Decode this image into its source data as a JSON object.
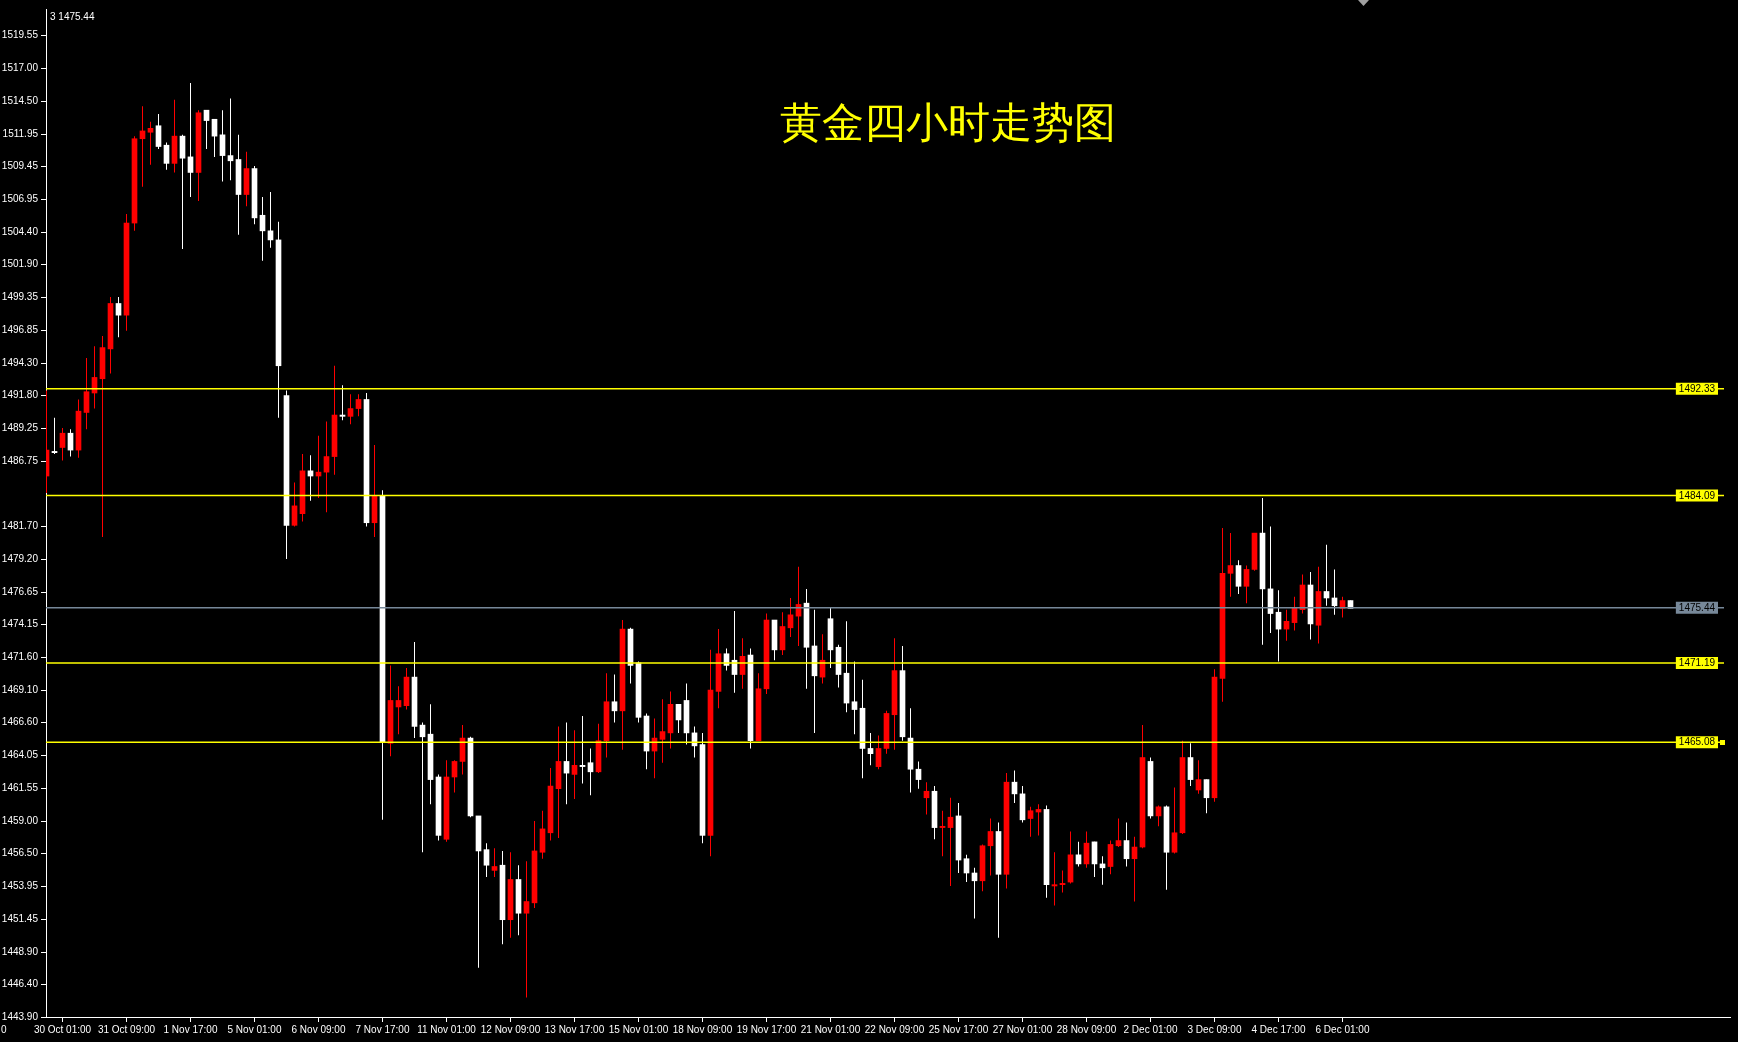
{
  "chart_data": {
    "type": "candlestick",
    "title": "黄金四小时走势图",
    "annotations": [
      "3 1475.44",
      "0"
    ],
    "categories": [
      null,
      null,
      "30 Oct 01:00",
      null,
      null,
      null,
      null,
      null,
      null,
      null,
      "31 Oct 09:00",
      null,
      null,
      null,
      null,
      null,
      null,
      null,
      "1 Nov 17:00",
      null,
      null,
      null,
      null,
      null,
      null,
      null,
      "5 Nov 01:00",
      null,
      null,
      null,
      null,
      null,
      null,
      null,
      "6 Nov 09:00",
      null,
      null,
      null,
      null,
      null,
      null,
      null,
      "7 Nov 17:00",
      null,
      null,
      null,
      null,
      null,
      null,
      null,
      "11 Nov 01:00",
      null,
      null,
      null,
      null,
      null,
      null,
      null,
      "12 Nov 09:00",
      null,
      null,
      null,
      null,
      null,
      null,
      null,
      "13 Nov 17:00",
      null,
      null,
      null,
      null,
      null,
      null,
      null,
      "15 Nov 01:00",
      null,
      null,
      null,
      null,
      null,
      null,
      null,
      "18 Nov 09:00",
      null,
      null,
      null,
      null,
      null,
      null,
      null,
      "19 Nov 17:00",
      null,
      null,
      null,
      null,
      null,
      null,
      null,
      "21 Nov 01:00",
      null,
      null,
      null,
      null,
      null,
      null,
      null,
      "22 Nov 09:00",
      null,
      null,
      null,
      null,
      null,
      null,
      null,
      "25 Nov 17:00",
      null,
      null,
      null,
      null,
      null,
      null,
      null,
      "27 Nov 01:00",
      null,
      null,
      null,
      null,
      null,
      null,
      null,
      "28 Nov 09:00",
      null,
      null,
      null,
      null,
      null,
      null,
      null,
      "2 Dec 01:00",
      null,
      null,
      null,
      null,
      null,
      null,
      null,
      "3 Dec 09:00",
      null,
      null,
      null,
      null,
      null,
      null,
      null,
      "4 Dec 17:00",
      null,
      null,
      null,
      null,
      null,
      null,
      null,
      "6 Dec 01:00",
      null
    ],
    "ohlc": [
      [
        1485.6,
        1492.2,
        1484.3,
        1487.6
      ],
      [
        1487.5,
        1490.1,
        1487.3,
        1487.4
      ],
      [
        1487.8,
        1489.3,
        1486.8,
        1488.9
      ],
      [
        1488.9,
        1489.2,
        1487.1,
        1487.6
      ],
      [
        1487.6,
        1491.5,
        1487.0,
        1490.6
      ],
      [
        1490.5,
        1494.7,
        1489.2,
        1492.1
      ],
      [
        1492.0,
        1495.6,
        1490.8,
        1493.2
      ],
      [
        1493.1,
        1496.4,
        1480.9,
        1495.5
      ],
      [
        1495.4,
        1499.4,
        1493.5,
        1498.9
      ],
      [
        1498.9,
        1499.4,
        1496.3,
        1498.0
      ],
      [
        1498.0,
        1505.8,
        1496.8,
        1505.1
      ],
      [
        1505.1,
        1511.8,
        1504.5,
        1511.6
      ],
      [
        1511.6,
        1514.1,
        1507.9,
        1512.2
      ],
      [
        1512.1,
        1512.9,
        1509.6,
        1512.4
      ],
      [
        1512.6,
        1513.5,
        1510.8,
        1511.0
      ],
      [
        1511.1,
        1511.3,
        1509.2,
        1509.7
      ],
      [
        1509.7,
        1514.6,
        1509.0,
        1511.8
      ],
      [
        1511.8,
        1511.9,
        1503.1,
        1510.1
      ],
      [
        1510.2,
        1515.9,
        1507.1,
        1509.0
      ],
      [
        1509.0,
        1513.8,
        1506.8,
        1513.6
      ],
      [
        1513.8,
        1513.8,
        1510.8,
        1513.0
      ],
      [
        1513.1,
        1513.1,
        1510.2,
        1511.8
      ],
      [
        1511.9,
        1513.8,
        1508.3,
        1510.3
      ],
      [
        1510.3,
        1514.7,
        1508.4,
        1509.9
      ],
      [
        1510.0,
        1511.9,
        1504.2,
        1507.3
      ],
      [
        1507.3,
        1510.6,
        1506.4,
        1509.3
      ],
      [
        1509.3,
        1509.5,
        1505.0,
        1505.5
      ],
      [
        1505.7,
        1507.1,
        1502.2,
        1504.5
      ],
      [
        1504.5,
        1507.5,
        1503.2,
        1503.8
      ],
      [
        1503.8,
        1505.2,
        1490.1,
        1494.1
      ],
      [
        1491.8,
        1492.2,
        1479.2,
        1481.8
      ],
      [
        1481.8,
        1485.1,
        1481.7,
        1483.3
      ],
      [
        1482.7,
        1487.3,
        1482.1,
        1486.0
      ],
      [
        1486.0,
        1487.2,
        1483.7,
        1485.6
      ],
      [
        1485.6,
        1488.7,
        1483.9,
        1485.9
      ],
      [
        1485.9,
        1489.8,
        1482.8,
        1487.1
      ],
      [
        1487.1,
        1494.1,
        1485.7,
        1490.3
      ],
      [
        1490.3,
        1492.6,
        1489.9,
        1490.2
      ],
      [
        1490.2,
        1491.9,
        1489.6,
        1490.8
      ],
      [
        1490.8,
        1491.9,
        1490.2,
        1491.5
      ],
      [
        1491.5,
        1492.0,
        1481.7,
        1482.0
      ],
      [
        1482.0,
        1488.0,
        1480.9,
        1484.1
      ],
      [
        1484.1,
        1484.5,
        1459.1,
        1465.1
      ],
      [
        1465.0,
        1471.0,
        1464.0,
        1468.3
      ],
      [
        1467.8,
        1469.4,
        1465.7,
        1468.3
      ],
      [
        1467.9,
        1470.8,
        1467.6,
        1470.1
      ],
      [
        1470.1,
        1472.8,
        1465.4,
        1466.3
      ],
      [
        1466.4,
        1466.6,
        1456.6,
        1465.5
      ],
      [
        1465.7,
        1468.0,
        1460.3,
        1462.2
      ],
      [
        1462.4,
        1462.6,
        1457.5,
        1457.9
      ],
      [
        1457.6,
        1463.7,
        1457.4,
        1462.4
      ],
      [
        1462.4,
        1463.7,
        1461.2,
        1463.6
      ],
      [
        1463.6,
        1466.4,
        1462.6,
        1465.4
      ],
      [
        1465.4,
        1465.5,
        1459.3,
        1459.4
      ],
      [
        1459.4,
        1459.4,
        1447.7,
        1456.7
      ],
      [
        1456.8,
        1457.3,
        1454.7,
        1455.6
      ],
      [
        1455.2,
        1456.9,
        1454.7,
        1455.5
      ],
      [
        1455.6,
        1456.7,
        1449.5,
        1451.4
      ],
      [
        1451.4,
        1456.6,
        1450.0,
        1454.5
      ],
      [
        1454.5,
        1455.6,
        1450.2,
        1451.9
      ],
      [
        1451.9,
        1455.9,
        1445.4,
        1452.8
      ],
      [
        1452.7,
        1459.0,
        1452.3,
        1456.7
      ],
      [
        1456.6,
        1459.8,
        1456.1,
        1458.4
      ],
      [
        1458.1,
        1463.1,
        1457.5,
        1461.7
      ],
      [
        1461.5,
        1466.3,
        1457.7,
        1463.6
      ],
      [
        1463.6,
        1466.6,
        1460.3,
        1462.7
      ],
      [
        1462.6,
        1466.0,
        1460.7,
        1463.3
      ],
      [
        1463.3,
        1467.1,
        1461.9,
        1463.2
      ],
      [
        1463.5,
        1464.6,
        1461.0,
        1462.8
      ],
      [
        1462.8,
        1466.5,
        1462.7,
        1465.2
      ],
      [
        1465.2,
        1470.4,
        1463.9,
        1468.2
      ],
      [
        1468.2,
        1470.3,
        1466.6,
        1467.5
      ],
      [
        1467.5,
        1474.5,
        1464.5,
        1473.8
      ],
      [
        1473.8,
        1473.9,
        1469.6,
        1471.0
      ],
      [
        1471.2,
        1471.3,
        1466.6,
        1467.0
      ],
      [
        1467.1,
        1467.3,
        1463.0,
        1464.4
      ],
      [
        1464.4,
        1466.9,
        1462.3,
        1465.4
      ],
      [
        1465.3,
        1468.4,
        1463.5,
        1465.9
      ],
      [
        1465.8,
        1469.0,
        1464.6,
        1468.0
      ],
      [
        1468.0,
        1468.0,
        1465.8,
        1466.8
      ],
      [
        1468.3,
        1469.6,
        1464.9,
        1465.8
      ],
      [
        1465.8,
        1466.3,
        1463.9,
        1464.8
      ],
      [
        1464.9,
        1465.8,
        1457.3,
        1457.9
      ],
      [
        1457.9,
        1472.2,
        1456.3,
        1469.1
      ],
      [
        1469.0,
        1473.8,
        1467.7,
        1471.9
      ],
      [
        1471.9,
        1472.3,
        1470.6,
        1471.0
      ],
      [
        1471.4,
        1475.2,
        1468.9,
        1470.3
      ],
      [
        1470.3,
        1473.1,
        1469.2,
        1471.7
      ],
      [
        1471.8,
        1472.3,
        1464.6,
        1465.2
      ],
      [
        1465.2,
        1470.4,
        1465.2,
        1469.2
      ],
      [
        1469.2,
        1475.0,
        1468.8,
        1474.5
      ],
      [
        1474.5,
        1474.5,
        1471.4,
        1472.2
      ],
      [
        1472.2,
        1475.1,
        1471.8,
        1474.0
      ],
      [
        1473.9,
        1476.2,
        1473.2,
        1474.9
      ],
      [
        1474.8,
        1478.6,
        1472.5,
        1475.7
      ],
      [
        1475.8,
        1476.9,
        1469.2,
        1472.4
      ],
      [
        1472.5,
        1475.3,
        1465.8,
        1470.2
      ],
      [
        1470.1,
        1473.4,
        1469.6,
        1471.4
      ],
      [
        1474.6,
        1475.5,
        1470.8,
        1472.2
      ],
      [
        1472.4,
        1472.6,
        1469.3,
        1470.3
      ],
      [
        1470.4,
        1474.4,
        1467.4,
        1468.1
      ],
      [
        1468.2,
        1471.3,
        1465.7,
        1467.6
      ],
      [
        1467.7,
        1469.9,
        1462.3,
        1464.6
      ],
      [
        1464.6,
        1465.8,
        1463.3,
        1464.2
      ],
      [
        1463.2,
        1465.6,
        1463.0,
        1464.6
      ],
      [
        1464.6,
        1467.5,
        1464.2,
        1467.3
      ],
      [
        1467.2,
        1473.1,
        1464.5,
        1470.6
      ],
      [
        1470.6,
        1472.5,
        1465.2,
        1465.5
      ],
      [
        1465.4,
        1467.7,
        1461.2,
        1463.0
      ],
      [
        1463.0,
        1463.6,
        1461.5,
        1462.2
      ],
      [
        1460.8,
        1462.0,
        1459.5,
        1461.3
      ],
      [
        1461.3,
        1461.7,
        1457.6,
        1458.5
      ],
      [
        1458.5,
        1459.8,
        1456.3,
        1458.6
      ],
      [
        1458.5,
        1460.8,
        1454.0,
        1459.3
      ],
      [
        1459.4,
        1460.4,
        1455.0,
        1456.0
      ],
      [
        1456.1,
        1456.4,
        1454.3,
        1455.0
      ],
      [
        1455.0,
        1455.4,
        1451.5,
        1454.4
      ],
      [
        1454.4,
        1457.2,
        1453.6,
        1457.1
      ],
      [
        1457.1,
        1459.2,
        1454.8,
        1458.2
      ],
      [
        1458.2,
        1458.9,
        1450.0,
        1454.9
      ],
      [
        1454.9,
        1462.7,
        1453.8,
        1462.0
      ],
      [
        1462.0,
        1462.9,
        1460.4,
        1461.1
      ],
      [
        1461.1,
        1461.7,
        1458.9,
        1459.1
      ],
      [
        1459.2,
        1460.1,
        1457.8,
        1459.8
      ],
      [
        1459.7,
        1460.3,
        1457.9,
        1459.9
      ],
      [
        1459.9,
        1460.2,
        1453.1,
        1454.1
      ],
      [
        1454.0,
        1456.6,
        1452.5,
        1454.1
      ],
      [
        1454.1,
        1455.2,
        1453.5,
        1454.2
      ],
      [
        1454.3,
        1458.2,
        1454.2,
        1456.4
      ],
      [
        1456.4,
        1457.4,
        1455.5,
        1455.7
      ],
      [
        1455.7,
        1458.2,
        1455.4,
        1457.3
      ],
      [
        1457.4,
        1457.4,
        1454.7,
        1455.7
      ],
      [
        1455.7,
        1456.3,
        1454.1,
        1455.4
      ],
      [
        1455.5,
        1457.5,
        1454.9,
        1457.2
      ],
      [
        1457.1,
        1459.2,
        1457.0,
        1457.5
      ],
      [
        1457.5,
        1458.9,
        1455.5,
        1456.1
      ],
      [
        1456.1,
        1457.8,
        1452.8,
        1457.0
      ],
      [
        1457.0,
        1466.4,
        1456.9,
        1463.9
      ],
      [
        1463.6,
        1463.9,
        1459.2,
        1459.4
      ],
      [
        1459.4,
        1460.2,
        1458.6,
        1460.1
      ],
      [
        1460.1,
        1460.2,
        1453.7,
        1456.6
      ],
      [
        1456.6,
        1461.6,
        1456.5,
        1458.1
      ],
      [
        1458.1,
        1465.2,
        1458.0,
        1463.9
      ],
      [
        1463.9,
        1465.0,
        1461.7,
        1462.2
      ],
      [
        1461.4,
        1463.7,
        1461.1,
        1462.2
      ],
      [
        1462.2,
        1462.2,
        1459.6,
        1460.8
      ],
      [
        1460.8,
        1470.7,
        1460.5,
        1470.1
      ],
      [
        1470.0,
        1481.6,
        1468.2,
        1478.1
      ],
      [
        1478.1,
        1481.2,
        1476.3,
        1478.7
      ],
      [
        1478.7,
        1479.1,
        1476.5,
        1477.1
      ],
      [
        1477.1,
        1478.7,
        1475.8,
        1478.4
      ],
      [
        1478.4,
        1481.2,
        1478.3,
        1481.2
      ],
      [
        1481.2,
        1483.9,
        1472.6,
        1476.9
      ],
      [
        1476.9,
        1481.7,
        1473.5,
        1475.0
      ],
      [
        1475.1,
        1476.8,
        1471.3,
        1473.8
      ],
      [
        1473.8,
        1475.3,
        1472.9,
        1474.4
      ],
      [
        1474.3,
        1476.3,
        1473.7,
        1475.4
      ],
      [
        1475.3,
        1478.0,
        1475.0,
        1477.2
      ],
      [
        1477.2,
        1478.2,
        1473.0,
        1474.2
      ],
      [
        1474.1,
        1478.6,
        1472.7,
        1476.7
      ],
      [
        1476.7,
        1480.3,
        1475.6,
        1476.2
      ],
      [
        1476.2,
        1478.4,
        1474.9,
        1475.6
      ],
      [
        1475.4,
        1476.3,
        1474.7,
        1476.0
      ],
      [
        1476.0,
        1476.0,
        1475.4,
        1475.4
      ]
    ],
    "colors": [
      "#ff0000",
      "#ffffff",
      "#ff0000",
      "#ffffff",
      "#ff0000",
      "#ff0000",
      "#ff0000",
      "#ff0000",
      "#ff0000",
      "#ffffff",
      "#ff0000",
      "#ff0000",
      "#ff0000",
      "#ff0000",
      "#ffffff",
      "#ffffff",
      "#ff0000",
      "#ffffff",
      "#ffffff",
      "#ff0000",
      "#ffffff",
      "#ffffff",
      "#ffffff",
      "#ffffff",
      "#ffffff",
      "#ff0000",
      "#ffffff",
      "#ffffff",
      "#ffffff",
      "#ffffff",
      "#ffffff",
      "#ff0000",
      "#ff0000",
      "#ffffff",
      "#ff0000",
      "#ff0000",
      "#ff0000",
      "#ffffff",
      "#ff0000",
      "#ff0000",
      "#ffffff",
      "#ff0000",
      "#ffffff",
      "#ff0000",
      "#ff0000",
      "#ff0000",
      "#ffffff",
      "#ffffff",
      "#ffffff",
      "#ffffff",
      "#ff0000",
      "#ff0000",
      "#ff0000",
      "#ffffff",
      "#ffffff",
      "#ffffff",
      "#ff0000",
      "#ffffff",
      "#ff0000",
      "#ffffff",
      "#ff0000",
      "#ff0000",
      "#ff0000",
      "#ff0000",
      "#ff0000",
      "#ffffff",
      "#ff0000",
      "#ffffff",
      "#ffffff",
      "#ff0000",
      "#ff0000",
      "#ffffff",
      "#ff0000",
      "#ffffff",
      "#ffffff",
      "#ffffff",
      "#ff0000",
      "#ff0000",
      "#ff0000",
      "#ffffff",
      "#ffffff",
      "#ffffff",
      "#ffffff",
      "#ff0000",
      "#ff0000",
      "#ffffff",
      "#ffffff",
      "#ff0000",
      "#ffffff",
      "#ff0000",
      "#ff0000",
      "#ffffff",
      "#ff0000",
      "#ff0000",
      "#ff0000",
      "#ffffff",
      "#ffffff",
      "#ff0000",
      "#ffffff",
      "#ffffff",
      "#ffffff",
      "#ffffff",
      "#ffffff",
      "#ffffff",
      "#ff0000",
      "#ff0000",
      "#ff0000",
      "#ffffff",
      "#ffffff",
      "#ffffff",
      "#ff0000",
      "#ffffff",
      "#ff0000",
      "#ff0000",
      "#ffffff",
      "#ffffff",
      "#ffffff",
      "#ff0000",
      "#ff0000",
      "#ffffff",
      "#ff0000",
      "#ffffff",
      "#ffffff",
      "#ff0000",
      "#ff0000",
      "#ffffff",
      "#ff0000",
      "#ff0000",
      "#ff0000",
      "#ffffff",
      "#ff0000",
      "#ffffff",
      "#ffffff",
      "#ff0000",
      "#ff0000",
      "#ffffff",
      "#ff0000",
      "#ff0000",
      "#ffffff",
      "#ff0000",
      "#ffffff",
      "#ff0000",
      "#ff0000",
      "#ffffff",
      "#ff0000",
      "#ffffff",
      "#ff0000",
      "#ff0000",
      "#ff0000",
      "#ffffff",
      "#ff0000",
      "#ff0000",
      "#ffffff",
      "#ffffff",
      "#ffffff",
      "#ff0000",
      "#ff0000",
      "#ff0000",
      "#ffffff",
      "#ff0000",
      "#ffffff",
      "#ffffff",
      "#ff0000",
      "#ffffff"
    ],
    "ylim": [
      1443.9,
      1521.6
    ],
    "yticks": [
      {
        "value": 1443.9,
        "label": "1443.90"
      },
      {
        "value": 1446.4,
        "label": "1446.40"
      },
      {
        "value": 1448.9,
        "label": "1448.90"
      },
      1451.45,
      1453.95,
      {
        "value": 1456.5,
        "label": "1456.50"
      },
      {
        "value": 1459,
        "label": "1459.00"
      },
      1461.55,
      1464.05,
      {
        "value": 1466.6,
        "label": "1466.60"
      },
      {
        "value": 1469.1,
        "label": "1469.10"
      },
      {
        "value": 1471.6,
        "label": "1471.60"
      },
      1474.15,
      1476.65,
      {
        "value": 1479.2,
        "label": "1479.20"
      },
      {
        "value": 1481.7,
        "label": "1481.70"
      },
      1486.75,
      1489.25,
      {
        "value": 1491.8,
        "label": "1491.80"
      },
      {
        "value": 1494.3,
        "label": "1494.30"
      },
      1496.85,
      1499.35,
      {
        "value": 1501.9,
        "label": "1501.90"
      },
      {
        "value": 1504.4,
        "label": "1504.40"
      },
      1506.95,
      1509.45,
      1511.95,
      {
        "value": 1514.5,
        "label": "1514.50"
      },
      {
        "value": 1517,
        "label": "1517.00"
      },
      1519.55
    ],
    "ref_lines": [
      {
        "axis": "y",
        "value": 1492.33,
        "label": "1492.33",
        "color": "#ffff00"
      },
      {
        "axis": "y",
        "value": 1484.09,
        "label": "1484.09",
        "color": "#ffff00"
      },
      {
        "axis": "y",
        "value": 1475.44,
        "label": "1475.44",
        "color": "#778899"
      },
      {
        "axis": "y",
        "value": 1471.19,
        "label": "1471.19",
        "color": "#ffff00"
      },
      {
        "axis": "y",
        "value": 1465.08,
        "label": "1465.08",
        "color": "#ffff00"
      }
    ]
  }
}
